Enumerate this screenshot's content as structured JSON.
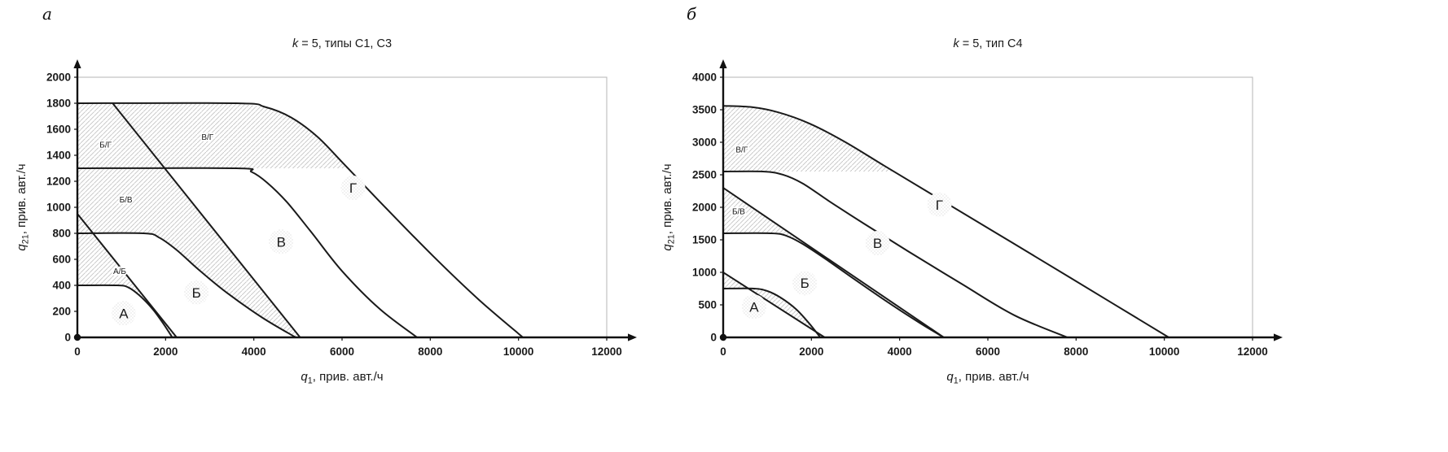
{
  "figure": {
    "panel_labels": [
      "а",
      "б"
    ]
  },
  "colors": {
    "line": "#1a1a1a",
    "axis": "#111111",
    "border": "#b5b5b5",
    "hatch": "#c3c3c3",
    "stipple": "#d4d4d4",
    "text": "#1a1a1a"
  },
  "chart_data": [
    {
      "type": "line",
      "title": {
        "var": "k",
        "rest": " = 5, типы С1, С3"
      },
      "xlabel": {
        "var": "q",
        "sub": "1",
        "rest": ", прив. авт./ч"
      },
      "ylabel": {
        "var": "q",
        "sub": "21",
        "rest": ", прив. авт./ч"
      },
      "xlim": [
        0,
        12000
      ],
      "ylim": [
        0,
        2000
      ],
      "xticks": [
        0,
        2000,
        4000,
        6000,
        8000,
        10000,
        12000
      ],
      "yticks": [
        0,
        200,
        400,
        600,
        800,
        1000,
        1200,
        1400,
        1600,
        1800,
        2000
      ],
      "grid": false,
      "series": [
        {
          "name": "boundary-a",
          "points": [
            [
              0,
              400
            ],
            [
              900,
              400
            ],
            [
              1150,
              385
            ],
            [
              1400,
              325
            ],
            [
              1700,
              220
            ],
            [
              1950,
              105
            ],
            [
              2150,
              0
            ]
          ]
        },
        {
          "name": "line-a-b",
          "points": [
            [
              0,
              950
            ],
            [
              2250,
              0
            ]
          ]
        },
        {
          "name": "boundary-b",
          "points": [
            [
              0,
              800
            ],
            [
              1500,
              800
            ],
            [
              1850,
              768
            ],
            [
              2250,
              672
            ],
            [
              2750,
              520
            ],
            [
              3400,
              340
            ],
            [
              4200,
              150
            ],
            [
              4950,
              0
            ]
          ]
        },
        {
          "name": "line-b-v",
          "points": [
            [
              800,
              1800
            ],
            [
              5050,
              0
            ]
          ]
        },
        {
          "name": "boundary-v",
          "points": [
            [
              0,
              1300
            ],
            [
              3600,
              1300
            ],
            [
              3950,
              1272
            ],
            [
              4300,
              1190
            ],
            [
              4750,
              1040
            ],
            [
              5300,
              810
            ],
            [
              6000,
              510
            ],
            [
              6850,
              220
            ],
            [
              7700,
              0
            ]
          ]
        },
        {
          "name": "boundary-g",
          "points": [
            [
              0,
              1800
            ],
            [
              3600,
              1800
            ],
            [
              4250,
              1772
            ],
            [
              4850,
              1690
            ],
            [
              5450,
              1540
            ],
            [
              6050,
              1330
            ],
            [
              6950,
              1010
            ],
            [
              8050,
              630
            ],
            [
              9100,
              290
            ],
            [
              10100,
              0
            ]
          ]
        }
      ],
      "hatched_regions": [
        {
          "name": "a-b",
          "polygon": [
            [
              0,
              950
            ],
            [
              2250,
              0
            ],
            [
              2150,
              0
            ],
            [
              1950,
              105
            ],
            [
              1700,
              220
            ],
            [
              1400,
              325
            ],
            [
              1150,
              385
            ],
            [
              900,
              400
            ],
            [
              0,
              400
            ]
          ]
        },
        {
          "name": "b-v",
          "polygon": [
            [
              0,
              1300
            ],
            [
              1980,
              1300
            ],
            [
              5050,
              0
            ],
            [
              4950,
              0
            ],
            [
              4200,
              150
            ],
            [
              3400,
              340
            ],
            [
              2750,
              520
            ],
            [
              2250,
              672
            ],
            [
              1850,
              768
            ],
            [
              1500,
              800
            ],
            [
              0,
              800
            ]
          ]
        },
        {
          "name": "b-g",
          "polygon": [
            [
              0,
              1800
            ],
            [
              800,
              1800
            ],
            [
              1980,
              1300
            ],
            [
              0,
              1300
            ]
          ]
        },
        {
          "name": "v-g",
          "polygon": [
            [
              800,
              1800
            ],
            [
              3600,
              1800
            ],
            [
              4250,
              1772
            ],
            [
              4850,
              1690
            ],
            [
              5450,
              1540
            ],
            [
              6050,
              1330
            ],
            [
              6130,
              1300
            ],
            [
              1980,
              1300
            ]
          ]
        }
      ],
      "zones": [
        {
          "name": "zone-a",
          "label": "А",
          "x": 1050,
          "y": 185,
          "size": "large"
        },
        {
          "name": "zone-b",
          "label": "Б",
          "x": 2700,
          "y": 345,
          "size": "large"
        },
        {
          "name": "zone-v",
          "label": "В",
          "x": 4620,
          "y": 735,
          "size": "large"
        },
        {
          "name": "zone-g",
          "label": "Г",
          "x": 6250,
          "y": 1150,
          "size": "large"
        },
        {
          "name": "zone-a-b",
          "label": "А/Б",
          "x": 960,
          "y": 510,
          "size": "small"
        },
        {
          "name": "zone-b-v",
          "label": "Б/В",
          "x": 1100,
          "y": 1060,
          "size": "small"
        },
        {
          "name": "zone-b-g",
          "label": "Б/Г",
          "x": 640,
          "y": 1480,
          "size": "small"
        },
        {
          "name": "zone-v-g",
          "label": "В/Г",
          "x": 2950,
          "y": 1540,
          "size": "small"
        }
      ]
    },
    {
      "type": "line",
      "title": {
        "var": "k",
        "rest": " = 5, тип С4"
      },
      "xlabel": {
        "var": "q",
        "sub": "1",
        "rest": ", прив. авт./ч"
      },
      "ylabel": {
        "var": "q",
        "sub": "21",
        "rest": ", прив. авт./ч"
      },
      "xlim": [
        0,
        12000
      ],
      "ylim": [
        0,
        4000
      ],
      "xticks": [
        0,
        2000,
        4000,
        6000,
        8000,
        10000,
        12000
      ],
      "yticks": [
        0,
        500,
        1000,
        1500,
        2000,
        2500,
        3000,
        3500,
        4000
      ],
      "grid": false,
      "series": [
        {
          "name": "boundary-a",
          "points": [
            [
              0,
              750
            ],
            [
              700,
              750
            ],
            [
              1000,
              712
            ],
            [
              1300,
              612
            ],
            [
              1650,
              435
            ],
            [
              1950,
              215
            ],
            [
              2200,
              0
            ]
          ]
        },
        {
          "name": "line-a-b",
          "points": [
            [
              0,
              1000
            ],
            [
              2300,
              0
            ]
          ]
        },
        {
          "name": "boundary-b",
          "points": [
            [
              0,
              1600
            ],
            [
              1100,
              1600
            ],
            [
              1450,
              1558
            ],
            [
              1800,
              1438
            ],
            [
              2300,
              1215
            ],
            [
              2950,
              905
            ],
            [
              3700,
              555
            ],
            [
              4450,
              225
            ],
            [
              5000,
              0
            ]
          ]
        },
        {
          "name": "line-b-v",
          "points": [
            [
              0,
              2300
            ],
            [
              5000,
              0
            ]
          ]
        },
        {
          "name": "boundary-v",
          "points": [
            [
              0,
              2550
            ],
            [
              900,
              2550
            ],
            [
              1350,
              2502
            ],
            [
              1800,
              2368
            ],
            [
              2400,
              2095
            ],
            [
              3200,
              1745
            ],
            [
              4200,
              1320
            ],
            [
              5400,
              825
            ],
            [
              6600,
              340
            ],
            [
              7800,
              0
            ]
          ]
        },
        {
          "name": "boundary-g",
          "points": [
            [
              0,
              3560
            ],
            [
              650,
              3540
            ],
            [
              1250,
              3460
            ],
            [
              1950,
              3290
            ],
            [
              2750,
              3010
            ],
            [
              3650,
              2640
            ],
            [
              4850,
              2150
            ],
            [
              6250,
              1580
            ],
            [
              7850,
              925
            ],
            [
              10100,
              0
            ]
          ]
        }
      ],
      "hatched_regions": [
        {
          "name": "a-b",
          "polygon": [
            [
              0,
              1000
            ],
            [
              2300,
              0
            ],
            [
              2200,
              0
            ],
            [
              1950,
              215
            ],
            [
              1650,
              435
            ],
            [
              1300,
              612
            ],
            [
              1000,
              712
            ],
            [
              700,
              750
            ],
            [
              0,
              750
            ]
          ]
        },
        {
          "name": "b-v",
          "polygon": [
            [
              0,
              2300
            ],
            [
              5000,
              0
            ],
            [
              4450,
              225
            ],
            [
              3700,
              555
            ],
            [
              2950,
              905
            ],
            [
              2300,
              1215
            ],
            [
              1800,
              1438
            ],
            [
              1450,
              1558
            ],
            [
              1100,
              1600
            ],
            [
              0,
              1600
            ]
          ]
        },
        {
          "name": "v-g",
          "polygon": [
            [
              0,
              3560
            ],
            [
              650,
              3540
            ],
            [
              1250,
              3460
            ],
            [
              1950,
              3290
            ],
            [
              2750,
              3010
            ],
            [
              3650,
              2640
            ],
            [
              3880,
              2550
            ],
            [
              0,
              2550
            ]
          ]
        }
      ],
      "zones": [
        {
          "name": "zone-a",
          "label": "А",
          "x": 700,
          "y": 470,
          "size": "large"
        },
        {
          "name": "zone-b",
          "label": "Б",
          "x": 1850,
          "y": 835,
          "size": "large"
        },
        {
          "name": "zone-v",
          "label": "В",
          "x": 3500,
          "y": 1450,
          "size": "large"
        },
        {
          "name": "zone-g",
          "label": "Г",
          "x": 4900,
          "y": 2040,
          "size": "large"
        },
        {
          "name": "zone-b-v",
          "label": "Б/В",
          "x": 350,
          "y": 1940,
          "size": "small"
        },
        {
          "name": "zone-v-g",
          "label": "В/Г",
          "x": 420,
          "y": 2890,
          "size": "small"
        }
      ]
    }
  ]
}
